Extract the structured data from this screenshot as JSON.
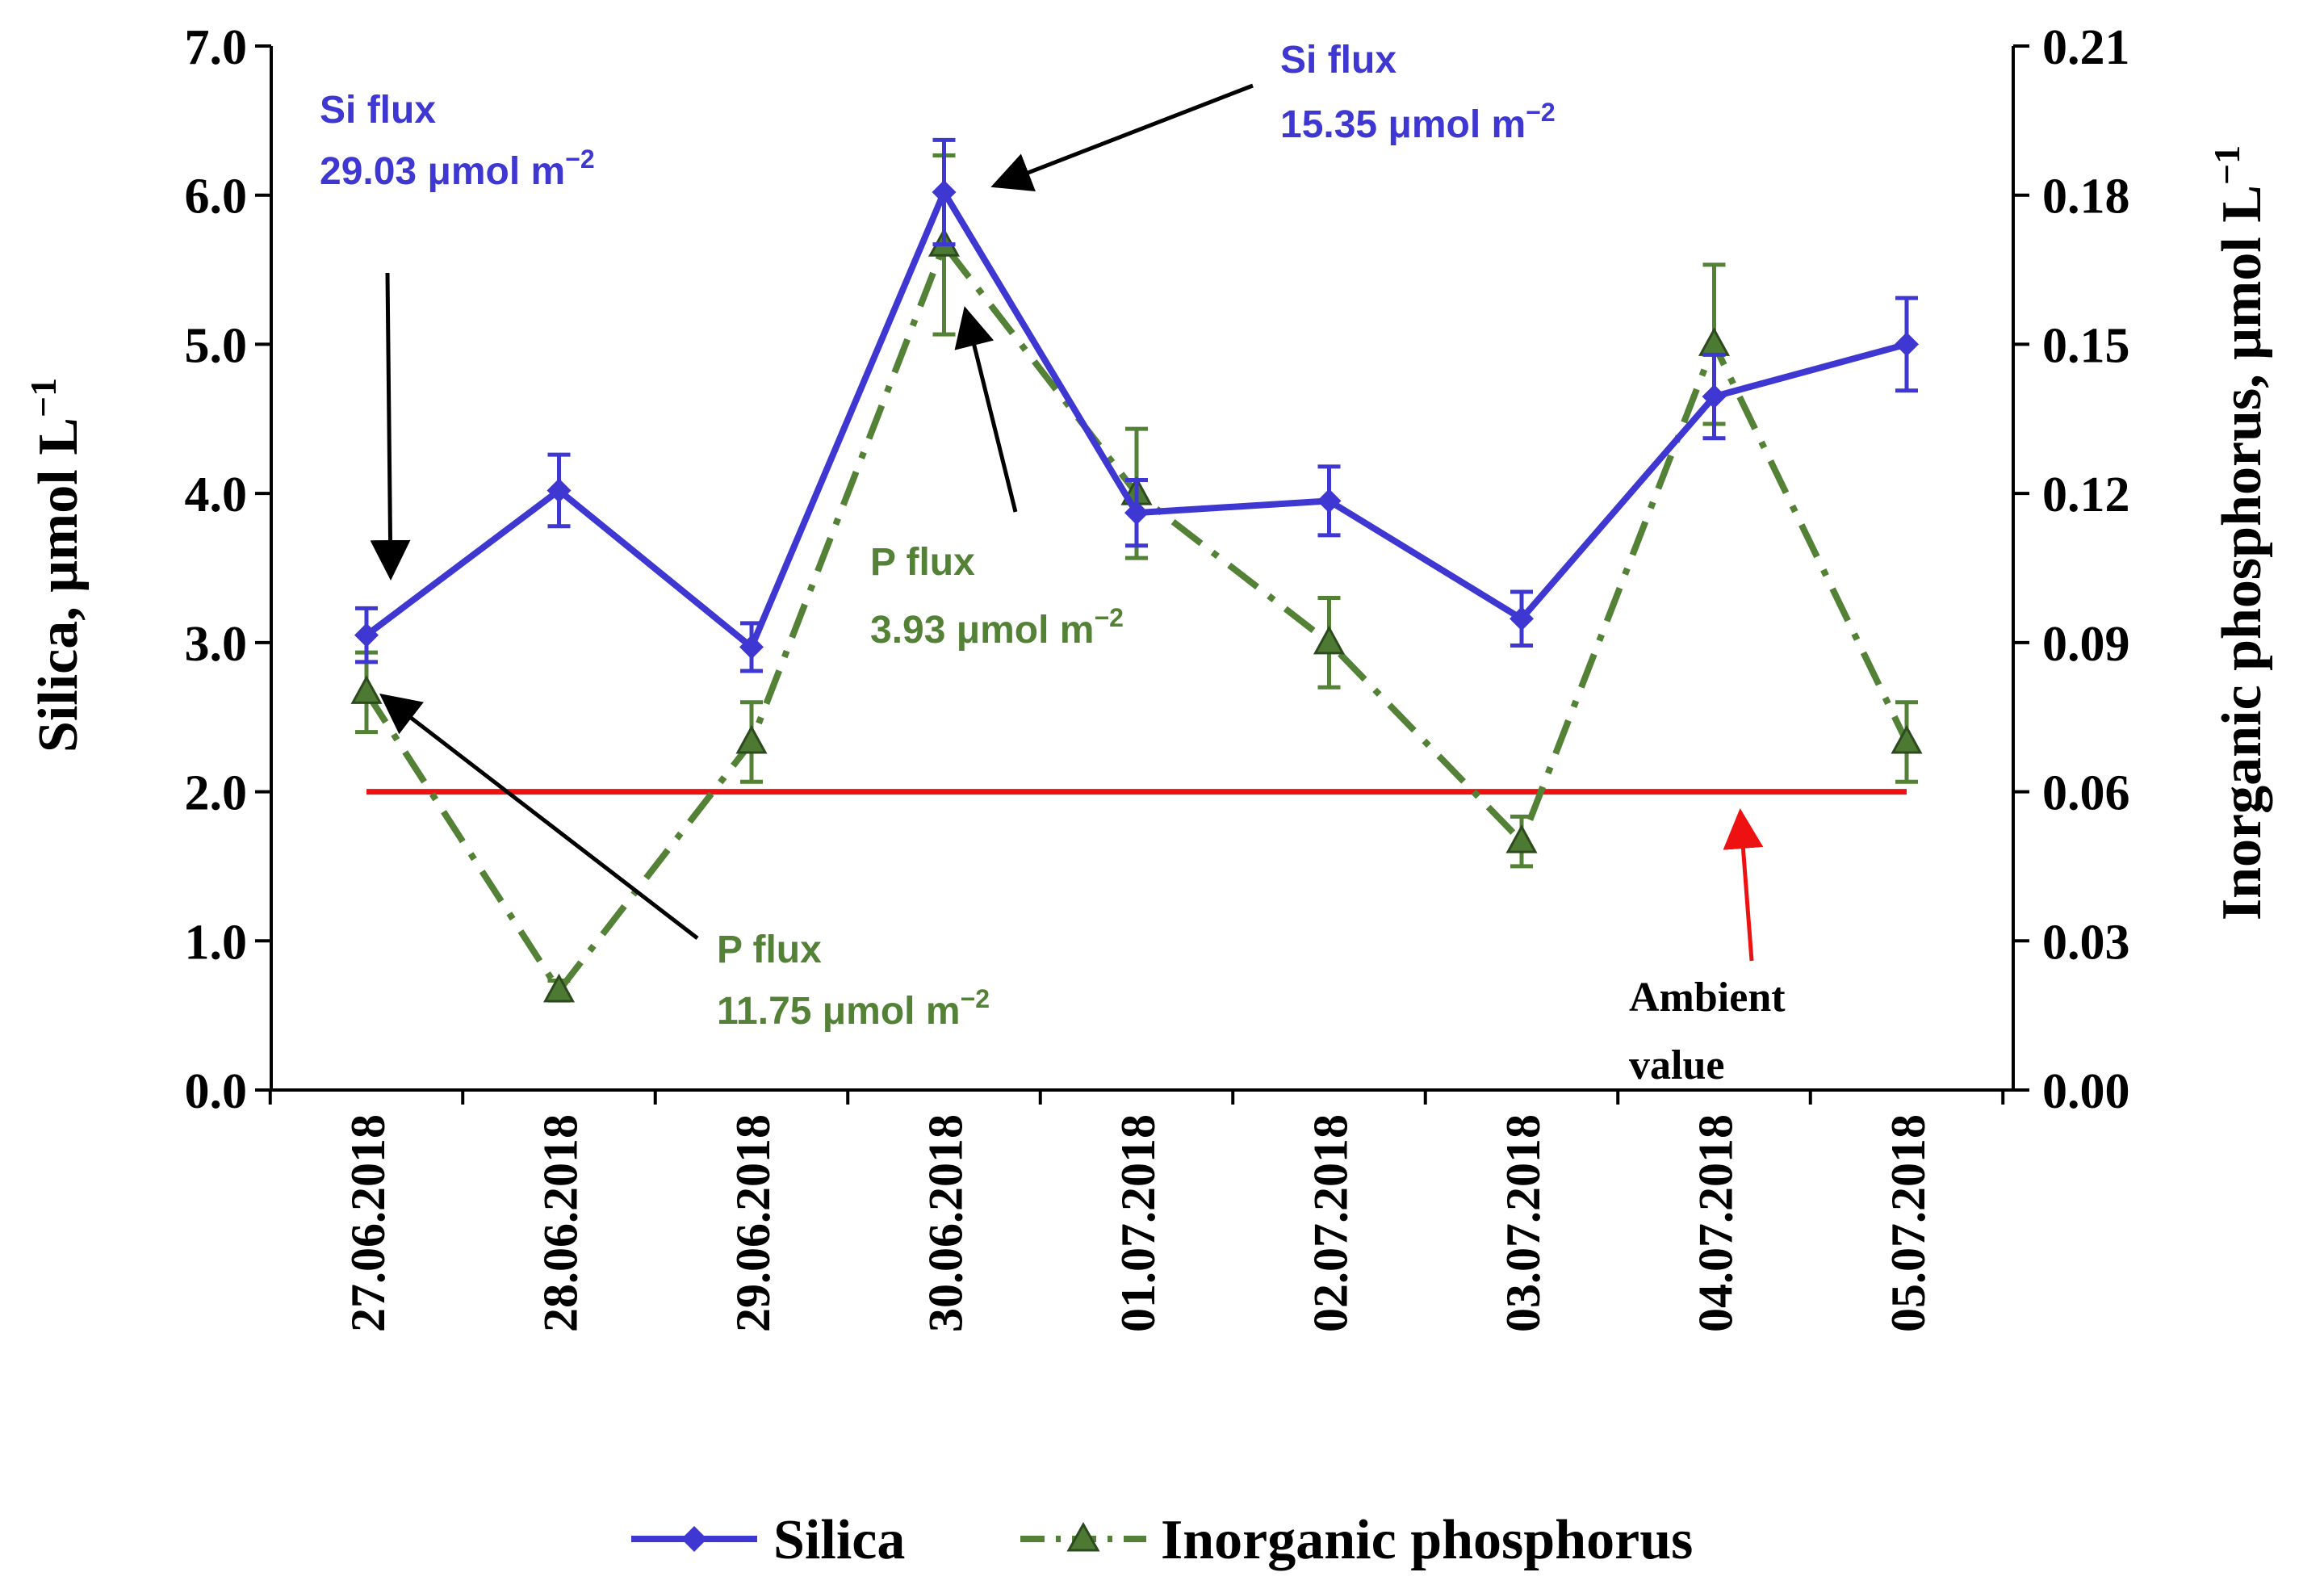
{
  "chart_data": {
    "type": "line",
    "categories": [
      "27.06.2018",
      "28.06.2018",
      "29.06.2018",
      "30.06.2018",
      "01.07.2018",
      "02.07.2018",
      "03.07.2018",
      "04.07.2018",
      "05.07.2018"
    ],
    "series": [
      {
        "name": "Silica",
        "axis": "left",
        "color": "#3f37d2",
        "marker": "diamond",
        "line_style": "solid",
        "values": [
          3.05,
          4.02,
          2.97,
          6.02,
          3.87,
          3.95,
          3.16,
          4.65,
          5.0
        ],
        "errors": [
          0.18,
          0.24,
          0.16,
          0.35,
          0.22,
          0.23,
          0.18,
          0.28,
          0.31
        ]
      },
      {
        "name": "Inorganic phosphorus",
        "axis": "right",
        "color": "#538135",
        "marker": "triangle",
        "line_style": "dash-dot",
        "values": [
          0.08,
          0.02,
          0.07,
          0.17,
          0.12,
          0.09,
          0.05,
          0.15,
          0.07
        ],
        "errors": [
          0.008,
          0.002,
          0.008,
          0.018,
          0.013,
          0.009,
          0.005,
          0.016,
          0.008
        ]
      }
    ],
    "ambient_line": {
      "value": 2.0,
      "axis": "left",
      "color": "#ee1111"
    },
    "left_axis": {
      "label_text": "Silica, μmol L",
      "label_sup": "−1",
      "ylim": [
        0,
        7
      ],
      "ticks": [
        "0.0",
        "1.0",
        "2.0",
        "3.0",
        "4.0",
        "5.0",
        "6.0",
        "7.0"
      ]
    },
    "right_axis": {
      "label_text": "Inorganic phosphorus, μmol L",
      "label_sup": "−1",
      "ylim": [
        0,
        0.21
      ],
      "ticks": [
        "0.00",
        "0.03",
        "0.06",
        "0.09",
        "0.12",
        "0.15",
        "0.18",
        "0.21"
      ]
    },
    "annotations": {
      "si_flux_left": {
        "title": "Si flux",
        "value": "29.03 μmol m",
        "sup": "−2",
        "color": "#3f37d2"
      },
      "si_flux_right": {
        "title": "Si flux",
        "value": "15.35 μmol m",
        "sup": "−2",
        "color": "#3f37d2"
      },
      "p_flux_mid": {
        "title": "P flux",
        "value": "3.93 μmol m",
        "sup": "−2",
        "color": "#538135"
      },
      "p_flux_low": {
        "title": "P flux",
        "value": "11.75 μmol m",
        "sup": "−2",
        "color": "#538135"
      },
      "ambient": {
        "line1": "Ambient",
        "line2": "value",
        "color": "#000000"
      }
    },
    "legend": {
      "placement": "bottom",
      "items": [
        "Silica",
        "Inorganic phosphorus"
      ]
    },
    "grid": false
  }
}
